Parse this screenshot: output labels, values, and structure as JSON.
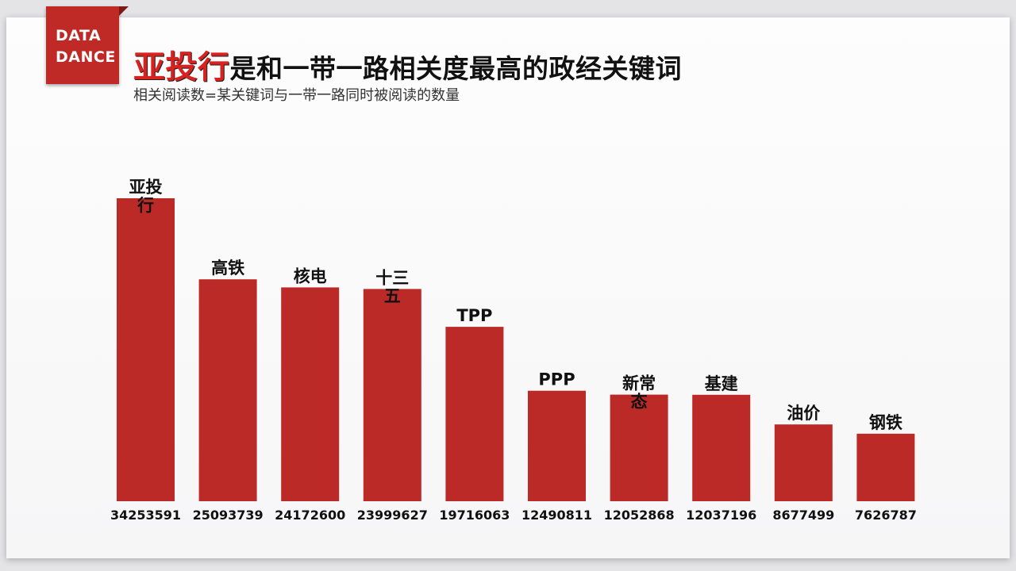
{
  "logo": {
    "line1": "DATA",
    "line2": "DANCE"
  },
  "title": {
    "highlight": "亚投行",
    "rest": "是和一带一路相关度最高的政经关键词"
  },
  "subtitle": "相关阅读数=某关键词与一带一路同时被阅读的数量",
  "colors": {
    "bar": "#bc2a27",
    "accent": "#bf2a27"
  },
  "chart_data": {
    "type": "bar",
    "categories": [
      "亚投行",
      "高铁",
      "核电",
      "十三五",
      "TPP",
      "PPP",
      "新常态",
      "基建",
      "油价",
      "钢铁"
    ],
    "label_lines": [
      [
        "亚投",
        "行"
      ],
      [
        "高铁"
      ],
      [
        "核电"
      ],
      [
        "十三",
        "五"
      ],
      [
        "TPP"
      ],
      [
        "PPP"
      ],
      [
        "新常",
        "态"
      ],
      [
        "基建"
      ],
      [
        "油价"
      ],
      [
        "钢铁"
      ]
    ],
    "values": [
      34253591,
      25093739,
      24172600,
      23999627,
      19716063,
      12490811,
      12052868,
      12037196,
      8677499,
      7626787
    ],
    "title": "是和一带一路相关度最高的政经关键词",
    "subtitle": "相关阅读数=某关键词与一带一路同时被阅读的数量",
    "ylim": [
      0,
      36000000
    ],
    "grid": false,
    "legend": "none"
  }
}
